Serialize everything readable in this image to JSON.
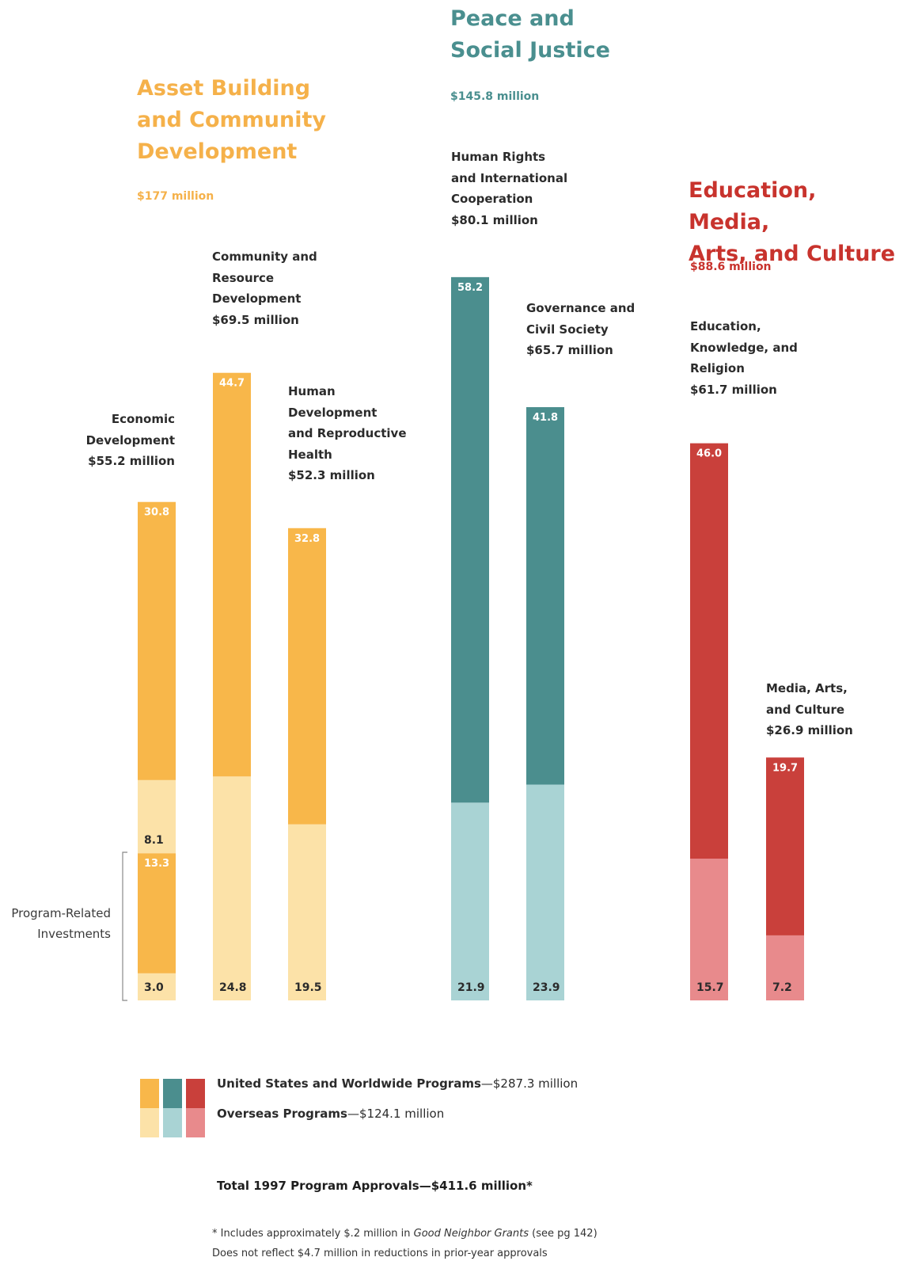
{
  "colors": {
    "asset_dark": "#F8B74A",
    "asset_light": "#FCE2A8",
    "peace_dark": "#4B8E8E",
    "peace_light": "#A9D3D4",
    "edu_dark": "#C9403B",
    "edu_light": "#E88A8C",
    "asset_title": "#F5B14A",
    "peace_title": "#4A8F8F",
    "edu_title": "#C8332D"
  },
  "groups": [
    {
      "title": "Asset Building\nand Community\nDevelopment",
      "total": "$177 million",
      "color_key": "asset"
    },
    {
      "title": "Peace and\nSocial Justice",
      "total": "$145.8 million",
      "color_key": "peace"
    },
    {
      "title": "Education, Media,\nArts, and Culture",
      "total": "$88.6 million",
      "color_key": "edu"
    }
  ],
  "chart_data": {
    "type": "bar",
    "stacked": true,
    "categories": [
      "Economic Development",
      "Community and Resource Development",
      "Human Development and Reproductive Health",
      "Human Rights and International Cooperation",
      "Governance and Civil Society",
      "Education, Knowledge, and Religion",
      "Media, Arts, and Culture"
    ],
    "units": "$ million",
    "bars": [
      {
        "group": "asset",
        "label_lines": [
          "Economic",
          "Development",
          "$55.2 million"
        ],
        "segments": [
          {
            "series": "overseas",
            "value": 3.0,
            "label": "3.0"
          },
          {
            "series": "pri",
            "value": 13.3,
            "label": "13.3"
          },
          {
            "series": "overseas",
            "value": 8.1,
            "label": "8.1"
          },
          {
            "series": "us",
            "value": 30.8,
            "label": "30.8"
          }
        ]
      },
      {
        "group": "asset",
        "label_lines": [
          "Community and",
          "Resource",
          "Development",
          "$69.5 million"
        ],
        "segments": [
          {
            "series": "overseas",
            "value": 24.8,
            "label": "24.8"
          },
          {
            "series": "us",
            "value": 44.7,
            "label": "44.7"
          }
        ]
      },
      {
        "group": "asset",
        "label_lines": [
          "Human",
          "Development",
          "and Reproductive",
          "Health",
          "$52.3 million"
        ],
        "segments": [
          {
            "series": "overseas",
            "value": 19.5,
            "label": "19.5"
          },
          {
            "series": "us",
            "value": 32.8,
            "label": "32.8"
          }
        ]
      },
      {
        "group": "peace",
        "label_lines": [
          "Human Rights",
          "and International",
          "Cooperation",
          "$80.1 million"
        ],
        "segments": [
          {
            "series": "overseas",
            "value": 21.9,
            "label": "21.9"
          },
          {
            "series": "us",
            "value": 58.2,
            "label": "58.2"
          }
        ]
      },
      {
        "group": "peace",
        "label_lines": [
          "Governance and",
          "Civil Society",
          "$65.7 million"
        ],
        "segments": [
          {
            "series": "overseas",
            "value": 23.9,
            "label": "23.9"
          },
          {
            "series": "us",
            "value": 41.8,
            "label": "41.8"
          }
        ]
      },
      {
        "group": "edu",
        "label_lines": [
          "Education,",
          "Knowledge, and",
          "Religion",
          "$61.7 million"
        ],
        "segments": [
          {
            "series": "overseas",
            "value": 15.7,
            "label": "15.7"
          },
          {
            "series": "us",
            "value": 46.0,
            "label": "46.0"
          }
        ]
      },
      {
        "group": "edu",
        "label_lines": [
          "Media, Arts,",
          "and Culture",
          "$26.9 million"
        ],
        "segments": [
          {
            "series": "overseas",
            "value": 7.2,
            "label": "7.2"
          },
          {
            "series": "us",
            "value": 19.7,
            "label": "19.7"
          }
        ]
      }
    ],
    "legend": [
      {
        "name": "United States and Worldwide Programs",
        "amount": "—$287.3 million"
      },
      {
        "name": "Overseas Programs",
        "amount": "—$124.1 million"
      }
    ],
    "bracket_label": [
      "Program-Related",
      "Investments"
    ],
    "total": "Total 1997 Program Approvals—$411.6 million*"
  },
  "footnote": {
    "line1_prefix": "* Includes approximately $.2 million in ",
    "line1_italic": "Good Neighbor Grants",
    "line1_suffix": " (see pg 142)",
    "line2": "Does not reflect $4.7 million in reductions in prior-year approvals"
  }
}
